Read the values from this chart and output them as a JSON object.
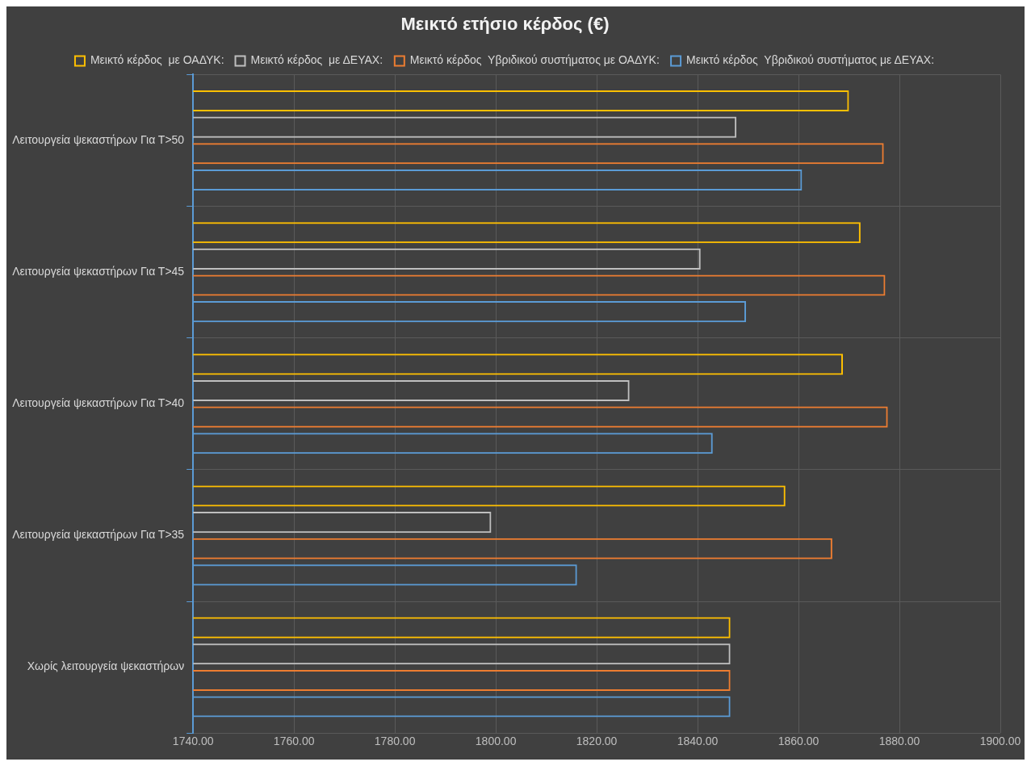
{
  "chart_data": {
    "type": "bar",
    "orientation": "horizontal",
    "title": "Μεικτό ετήσιο κέρδος (€)",
    "categories": [
      "Λειτουργεία ψεκαστήρων Για Τ>50",
      "Λειτουργεία ψεκαστήρων Για Τ>45",
      "Λειτουργεία ψεκαστήρων Για Τ>40",
      "Λειτουργεία ψεκαστήρων Για Τ>35",
      "Χωρίς λειτουργεία ψεκαστήρων"
    ],
    "series": [
      {
        "name": "Μεικτό κέρδος  με ΟΑΔΥΚ:",
        "color": "#ffc000",
        "values": [
          1870,
          1872.3,
          1868.8,
          1857.4,
          1846.5
        ]
      },
      {
        "name": "Μεικτό κέρδος  με ΔΕΥΑΧ:",
        "color": "#bfbfbf",
        "values": [
          1847.7,
          1840.6,
          1826.5,
          1799.1,
          1846.5
        ]
      },
      {
        "name": "Μεικτό κέρδος  Υβριδικού συστήματος με ΟΑΔΥΚ:",
        "color": "#ed7d31",
        "values": [
          1876.9,
          1877.2,
          1877.7,
          1866.7,
          1846.5
        ]
      },
      {
        "name": "Μεικτό κέρδος  Υβριδικού συστήματος με ΔΕΥΑΧ:",
        "color": "#5b9bd5",
        "values": [
          1860.7,
          1849.6,
          1843,
          1816.1,
          1846.5
        ]
      }
    ],
    "xlim": [
      1740,
      1900
    ],
    "xticks": [
      {
        "value": 1740,
        "label": "1740.00"
      },
      {
        "value": 1760,
        "label": "1760.00"
      },
      {
        "value": 1780,
        "label": "1780.00"
      },
      {
        "value": 1800,
        "label": "1800.00"
      },
      {
        "value": 1820,
        "label": "1820.00"
      },
      {
        "value": 1840,
        "label": "1840.00"
      },
      {
        "value": 1860,
        "label": "1860.00"
      },
      {
        "value": 1880,
        "label": "1880.00"
      },
      {
        "value": 1900,
        "label": "1900.00"
      }
    ],
    "grid": true,
    "legend": "top"
  }
}
